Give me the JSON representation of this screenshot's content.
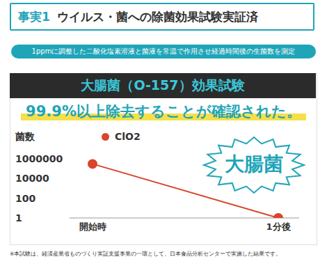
{
  "header": {
    "label": "事実1",
    "title": "ウイルス・菌への除菌効果試験実証済"
  },
  "subtitle": "1ppmに調整した二酸化塩素溶液と菌液を常温で作用させ経過時間後の生菌数を測定",
  "chart_data": {
    "type": "line",
    "title": "大腸菌（O-157）効果試験",
    "subtitle": "99.9%以上除去することが確認された。",
    "y_label": "菌数",
    "annotation": "大腸菌",
    "categories": [
      "開始時",
      "1分後"
    ],
    "series": [
      {
        "name": "ClO2",
        "color": "#d9452b",
        "values": [
          300000,
          1
        ],
        "marker": "circle"
      }
    ],
    "ylim": [
      1,
      1000000
    ],
    "yticks": [
      1,
      100,
      10000,
      1000000
    ],
    "log": "y",
    "grid": false,
    "legend": "top left"
  },
  "footnote": "※本試験は、経済産業省ものづくり実証支援事業の一環として、日本食品分析センターで実施した結果です。"
}
